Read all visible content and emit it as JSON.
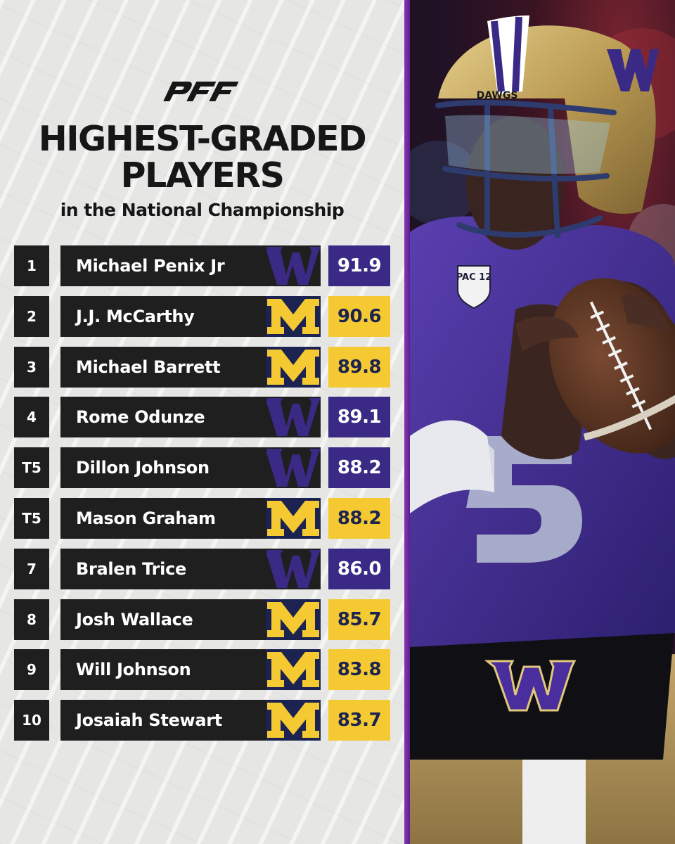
{
  "brand": {
    "logo_text": "PFF"
  },
  "header": {
    "title_line1": "HIGHEST-GRADED",
    "title_line2": "PLAYERS",
    "subtitle": "in the National Championship"
  },
  "colors": {
    "washington_purple": "#3a2a86",
    "michigan_maize": "#f4c932",
    "michigan_blue": "#1c2350",
    "row_dark": "#1f1f1f",
    "divider_purple": "#7a2fb0"
  },
  "players": [
    {
      "rank": "1",
      "name": "Michael Penix Jr",
      "team": "washington",
      "team_icon": "washington-w-logo",
      "grade": "91.9"
    },
    {
      "rank": "2",
      "name": "J.J. McCarthy",
      "team": "michigan",
      "team_icon": "michigan-block-m-logo",
      "grade": "90.6"
    },
    {
      "rank": "3",
      "name": "Michael Barrett",
      "team": "michigan",
      "team_icon": "michigan-block-m-logo",
      "grade": "89.8"
    },
    {
      "rank": "4",
      "name": "Rome Odunze",
      "team": "washington",
      "team_icon": "washington-w-logo",
      "grade": "89.1"
    },
    {
      "rank": "T5",
      "name": "Dillon Johnson",
      "team": "washington",
      "team_icon": "washington-w-logo",
      "grade": "88.2"
    },
    {
      "rank": "T5",
      "name": "Mason Graham",
      "team": "michigan",
      "team_icon": "michigan-block-m-logo",
      "grade": "88.2"
    },
    {
      "rank": "7",
      "name": "Bralen Trice",
      "team": "washington",
      "team_icon": "washington-w-logo",
      "grade": "86.0"
    },
    {
      "rank": "8",
      "name": "Josh Wallace",
      "team": "michigan",
      "team_icon": "michigan-block-m-logo",
      "grade": "85.7"
    },
    {
      "rank": "9",
      "name": "Will Johnson",
      "team": "michigan",
      "team_icon": "michigan-block-m-logo",
      "grade": "83.8"
    },
    {
      "rank": "10",
      "name": "Josaiah Stewart",
      "team": "michigan",
      "team_icon": "michigan-block-m-logo",
      "grade": "83.7"
    }
  ],
  "photo": {
    "helmet_text": "DAWGS",
    "patch_text": "PAC 12",
    "belt_letter": "W"
  }
}
